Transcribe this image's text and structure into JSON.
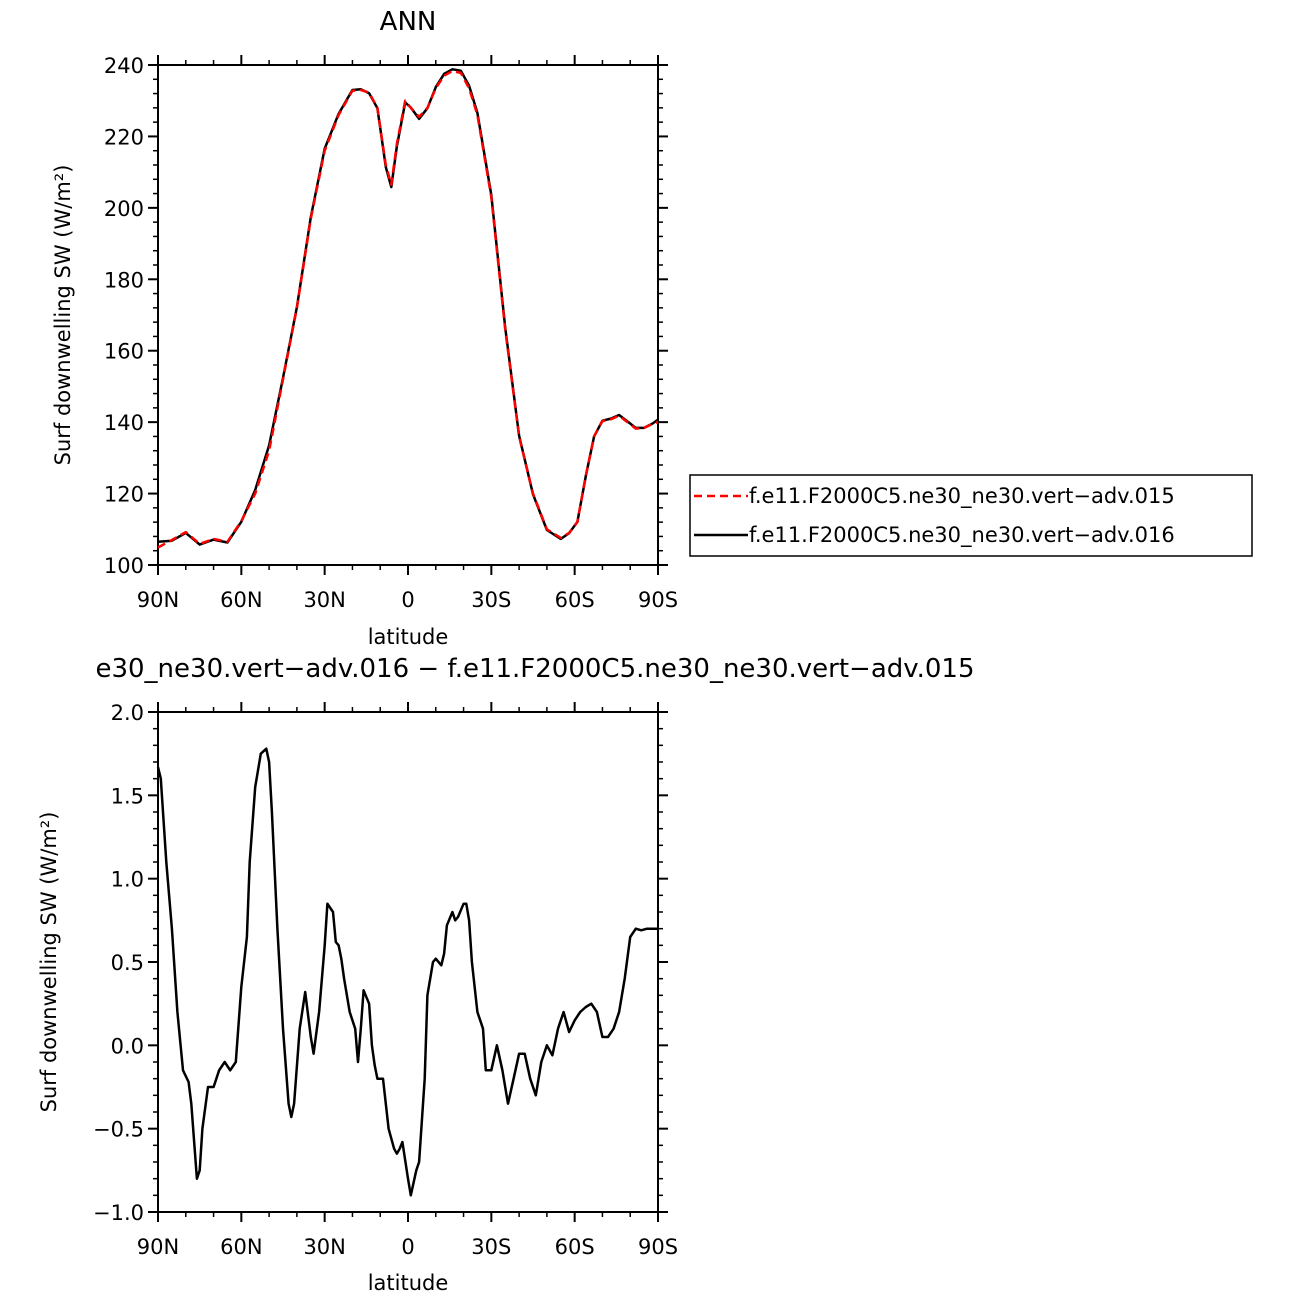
{
  "colors": {
    "series_015": "#ff0000",
    "series_016": "#000000",
    "axis": "#000000"
  },
  "chart_data": [
    {
      "type": "line",
      "title": "ANN",
      "xlabel": "latitude",
      "ylabel": "Surf downwelling SW (W/m²)",
      "xlim": [
        90,
        -90
      ],
      "ylim": [
        100,
        240
      ],
      "yticks": [
        100,
        120,
        140,
        160,
        180,
        200,
        220,
        240
      ],
      "ytick_labels": [
        "100",
        "120",
        "140",
        "160",
        "180",
        "200",
        "220",
        "240"
      ],
      "xticks": [
        90,
        60,
        30,
        0,
        -30,
        -60,
        -90
      ],
      "xtick_labels": [
        "90N",
        "60N",
        "30N",
        "0",
        "30S",
        "60S",
        "90S"
      ],
      "grid": false,
      "legend": "right",
      "x": [
        90,
        85,
        80,
        75,
        70,
        65,
        60,
        55,
        50,
        45,
        40,
        35,
        30,
        25,
        20,
        17,
        14,
        11,
        8,
        6,
        4,
        1,
        -1,
        -4,
        -7,
        -10,
        -13,
        -16,
        -19,
        -22,
        -25,
        -30,
        -35,
        -40,
        -45,
        -50,
        -55,
        -58,
        -61,
        -64,
        -67,
        -70,
        -73,
        -76,
        -79,
        -82,
        -85,
        -88,
        -90
      ],
      "series": [
        {
          "name": "f.e11.F2000C5.ne30_ne30.vert−adv.015",
          "style": "dashed",
          "values": [
            104.9,
            107.0,
            109.2,
            105.9,
            107.3,
            106.5,
            112.3,
            120.0,
            132.0,
            152.0,
            172.0,
            197.0,
            216.0,
            226.0,
            232.8,
            233.0,
            232.3,
            228.0,
            212.0,
            206.5,
            218.0,
            230.0,
            228.0,
            225.5,
            228.0,
            233.5,
            237.0,
            238.3,
            237.8,
            233.5,
            226.0,
            203.0,
            166.0,
            136.0,
            120.0,
            110.0,
            107.6,
            109.0,
            112.0,
            125.0,
            136.0,
            140.3,
            140.8,
            141.8,
            140.0,
            138.2,
            138.4,
            139.5,
            140.0
          ]
        },
        {
          "name": "f.e11.F2000C5.ne30_ne30.vert−adv.016",
          "style": "solid",
          "values": [
            106.5,
            106.8,
            109.0,
            105.7,
            107.1,
            106.3,
            112.1,
            121.0,
            133.5,
            152.4,
            172.2,
            197.4,
            216.6,
            226.3,
            233.0,
            233.2,
            232.1,
            227.9,
            211.4,
            205.8,
            217.3,
            229.5,
            228.1,
            224.9,
            227.9,
            233.8,
            237.5,
            238.8,
            238.4,
            234.2,
            226.6,
            203.6,
            166.5,
            136.2,
            119.8,
            109.8,
            107.3,
            108.9,
            112.1,
            124.9,
            136.0,
            140.4,
            141.0,
            142.0,
            140.2,
            138.4,
            138.4,
            139.6,
            140.7
          ]
        }
      ]
    },
    {
      "type": "line",
      "title": "e30_ne30.vert−adv.016 − f.e11.F2000C5.ne30_ne30.vert−adv.015",
      "xlabel": "latitude",
      "ylabel": "Surf downwelling SW (W/m²)",
      "xlim": [
        90,
        -90
      ],
      "ylim": [
        -1.0,
        2.0
      ],
      "yticks": [
        -1.0,
        -0.5,
        0.0,
        0.5,
        1.0,
        1.5,
        2.0
      ],
      "ytick_labels": [
        "−1.0",
        "−0.5",
        "0.0",
        "0.5",
        "1.0",
        "1.5",
        "2.0"
      ],
      "xticks": [
        90,
        60,
        30,
        0,
        -30,
        -60,
        -90
      ],
      "xtick_labels": [
        "90N",
        "60N",
        "30N",
        "0",
        "30S",
        "60S",
        "90S"
      ],
      "grid": false,
      "x": [
        90,
        89,
        87,
        85,
        83,
        81,
        79,
        78,
        76,
        75,
        74,
        72,
        70,
        68,
        66,
        64,
        62,
        60,
        58,
        57,
        55,
        53,
        51,
        50,
        49,
        47,
        45,
        43,
        42,
        41,
        39,
        37,
        35,
        34,
        32,
        30,
        29,
        27,
        26,
        25,
        24,
        23,
        21,
        19,
        18,
        17,
        16,
        14,
        13,
        12,
        11,
        9,
        7,
        5,
        4,
        3,
        2,
        0,
        -1,
        -3,
        -4,
        -6,
        -7,
        -9,
        -10,
        -12,
        -13,
        -14,
        -16,
        -17,
        -18,
        -20,
        -21,
        -22,
        -23,
        -25,
        -26,
        -27,
        -28,
        -30,
        -32,
        -34,
        -36,
        -38,
        -40,
        -42,
        -44,
        -46,
        -48,
        -50,
        -52,
        -54,
        -56,
        -58,
        -60,
        -62,
        -64,
        -66,
        -68,
        -70,
        -72,
        -74,
        -76,
        -78,
        -80,
        -82,
        -84,
        -86,
        -88,
        -90
      ],
      "series": [
        {
          "name": "",
          "style": "solid",
          "values": [
            1.67,
            1.6,
            1.1,
            0.7,
            0.2,
            -0.15,
            -0.22,
            -0.35,
            -0.8,
            -0.75,
            -0.5,
            -0.25,
            -0.25,
            -0.15,
            -0.1,
            -0.15,
            -0.1,
            0.35,
            0.65,
            1.1,
            1.55,
            1.75,
            1.78,
            1.7,
            1.4,
            0.7,
            0.1,
            -0.35,
            -0.43,
            -0.35,
            0.1,
            0.32,
            0.05,
            -0.05,
            0.2,
            0.6,
            0.85,
            0.8,
            0.62,
            0.6,
            0.52,
            0.4,
            0.2,
            0.1,
            -0.1,
            0.1,
            0.33,
            0.25,
            0.0,
            -0.12,
            -0.2,
            -0.2,
            -0.5,
            -0.62,
            -0.65,
            -0.62,
            -0.58,
            -0.8,
            -0.9,
            -0.75,
            -0.7,
            -0.2,
            0.3,
            0.5,
            0.52,
            0.48,
            0.55,
            0.72,
            0.8,
            0.75,
            0.77,
            0.85,
            0.85,
            0.75,
            0.5,
            0.2,
            0.15,
            0.1,
            -0.15,
            -0.15,
            0.0,
            -0.15,
            -0.35,
            -0.2,
            -0.05,
            -0.05,
            -0.2,
            -0.3,
            -0.1,
            0.0,
            -0.06,
            0.1,
            0.2,
            0.08,
            0.15,
            0.2,
            0.23,
            0.25,
            0.2,
            0.05,
            0.05,
            0.1,
            0.2,
            0.4,
            0.65,
            0.7,
            0.69,
            0.7,
            0.7,
            0.7
          ]
        }
      ]
    }
  ]
}
